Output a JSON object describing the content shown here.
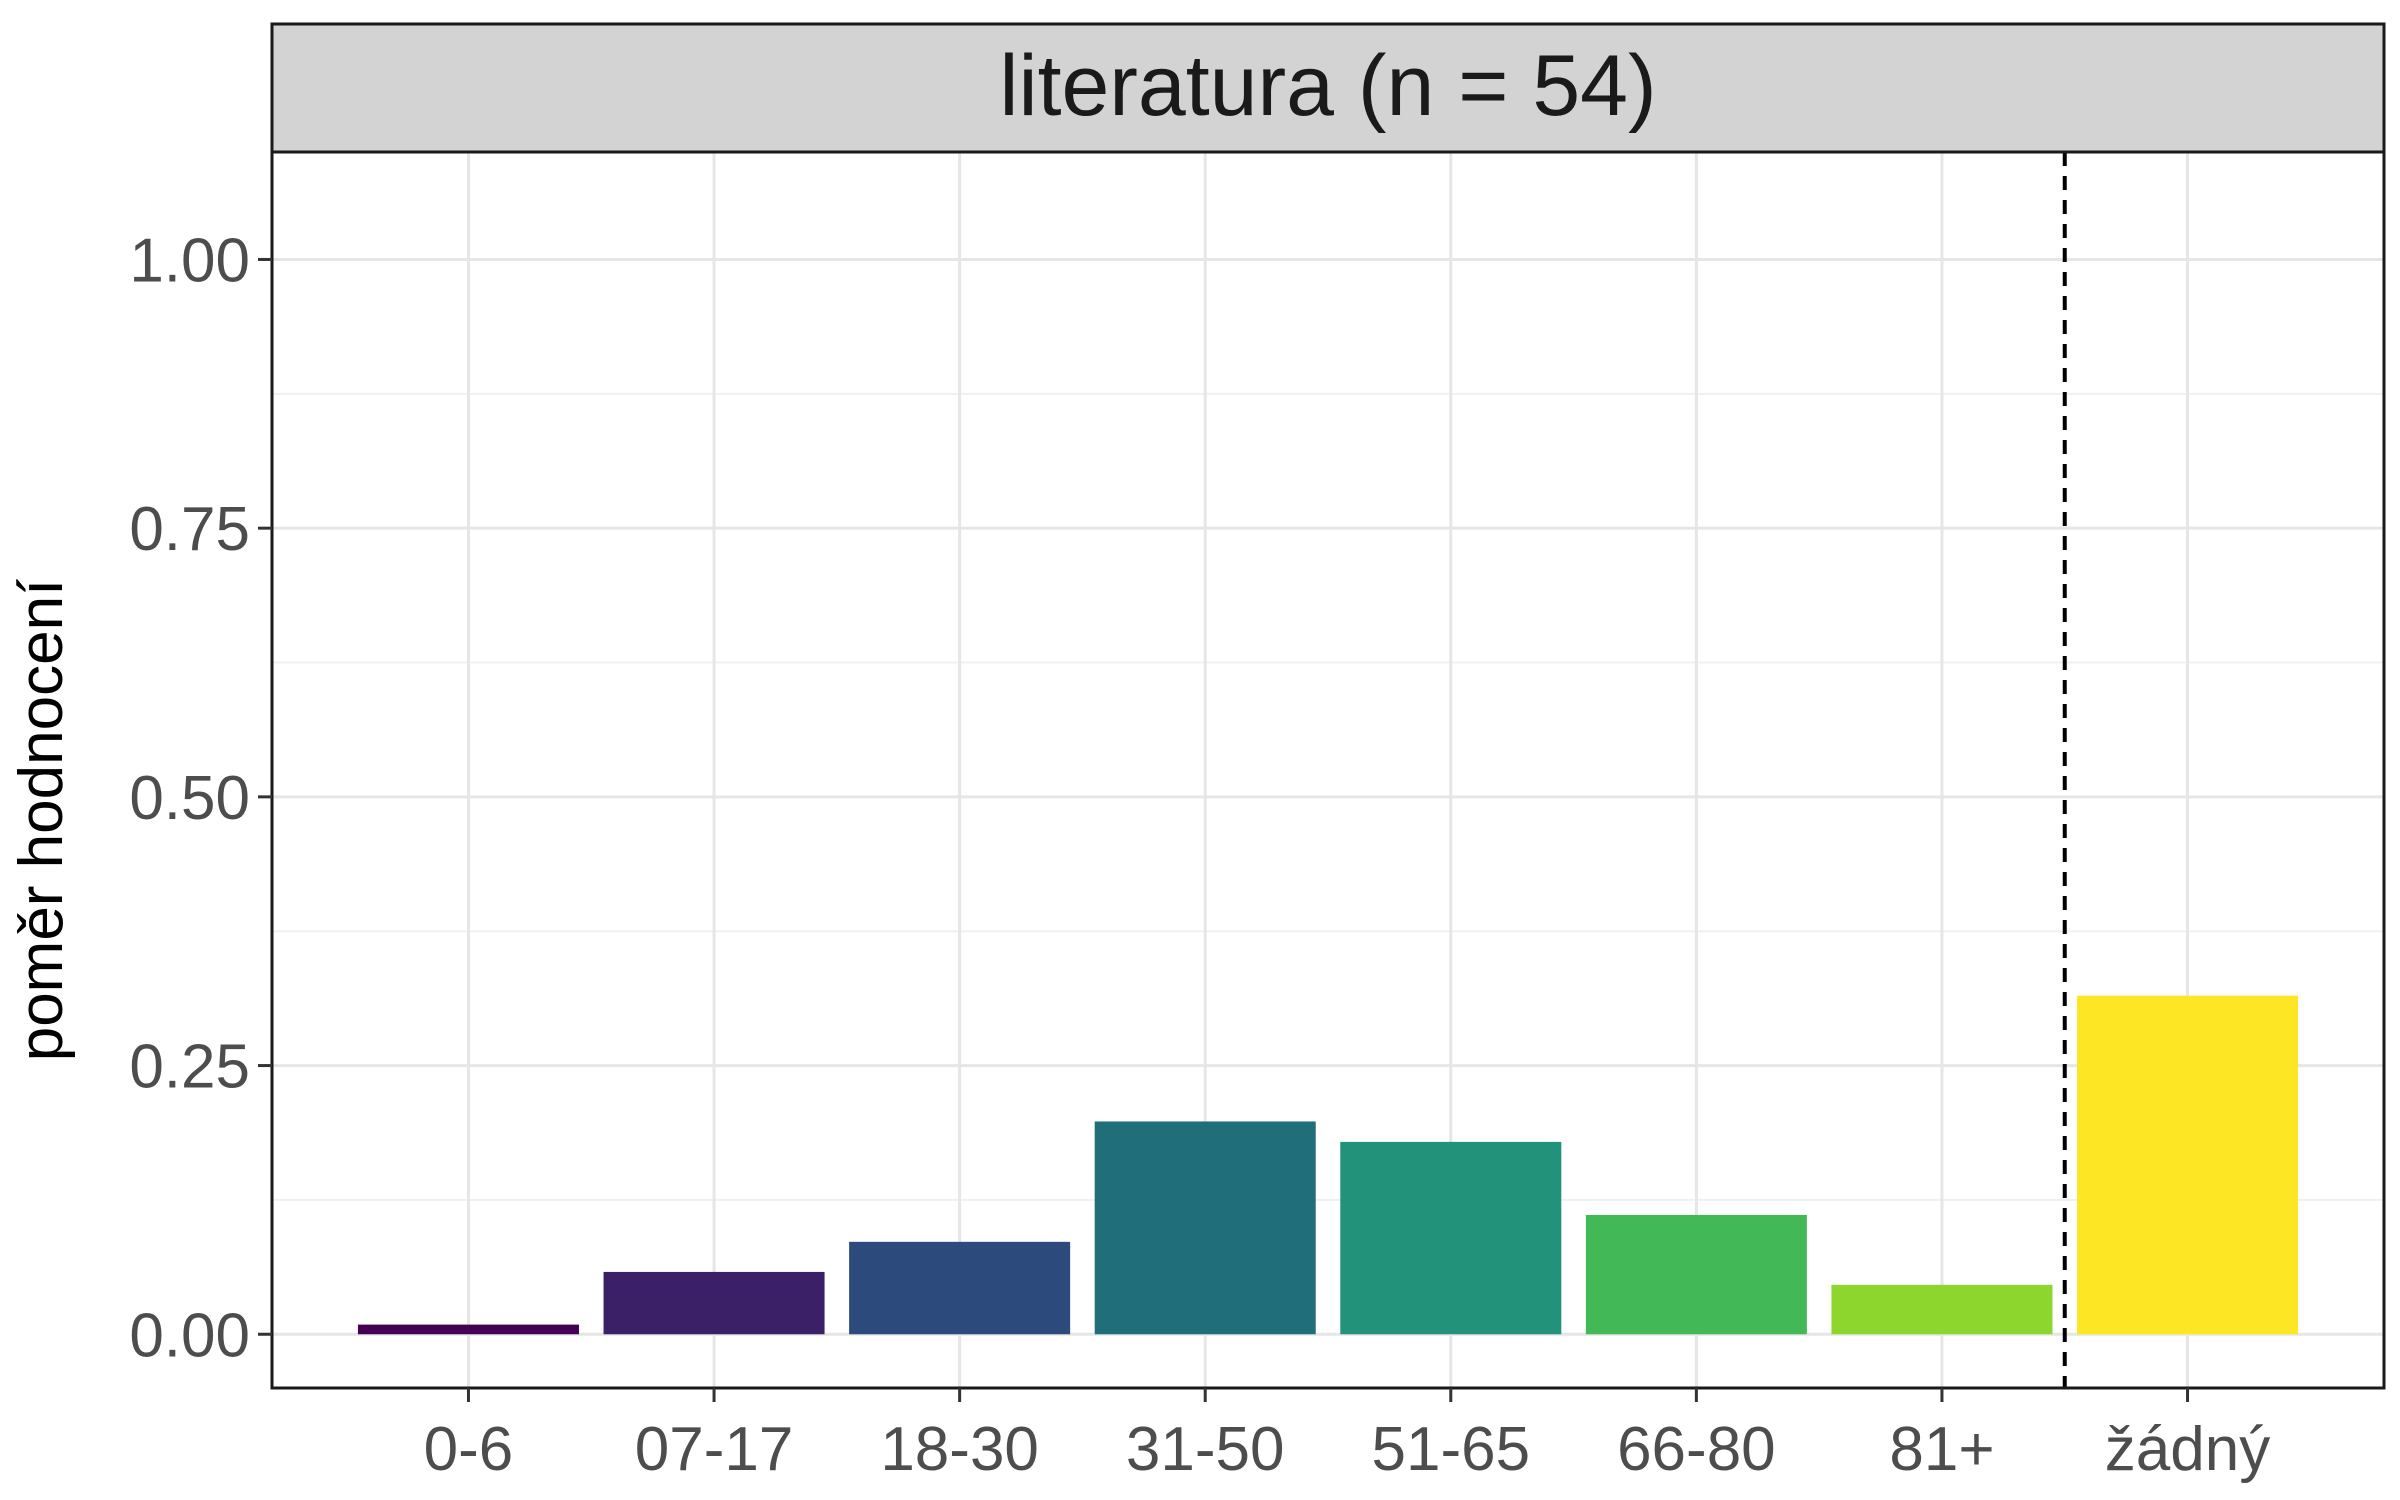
{
  "chart_data": {
    "type": "bar",
    "title": "literatura (n = 54)",
    "xlabel": "",
    "ylabel": "poměr hodnocení",
    "categories": [
      "0-6",
      "07-17",
      "18-30",
      "31-50",
      "51-65",
      "66-80",
      "81+",
      "žádný"
    ],
    "values": [
      0.009,
      0.058,
      0.086,
      0.198,
      0.179,
      0.111,
      0.046,
      0.315
    ],
    "colors": [
      "#440154",
      "#3b1f67",
      "#2c4a7b",
      "#216e7b",
      "#22937a",
      "#42b956",
      "#8dd62e",
      "#fde725"
    ],
    "ylim": [
      -0.05,
      1.1
    ],
    "yticks": [
      0.0,
      0.25,
      0.5,
      0.75,
      1.0
    ],
    "ytick_labels": [
      "0.00",
      "0.25",
      "0.50",
      "0.75",
      "1.00"
    ],
    "separator": "dashed vertical line between 81+ and žádný",
    "grid": true,
    "legend": "none"
  }
}
